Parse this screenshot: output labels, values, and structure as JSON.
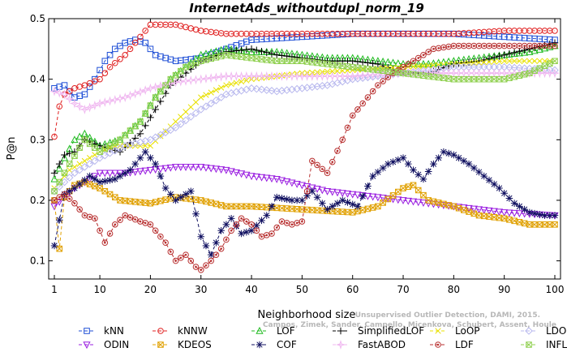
{
  "chart_data": {
    "type": "line",
    "title": "InternetAds_withoutdupl_norm_19",
    "xlabel": "Neighborhood size",
    "ylabel": "P@n",
    "xlim": [
      0,
      100
    ],
    "ylim": [
      0.07,
      0.5
    ],
    "xticks": [
      1,
      10,
      20,
      30,
      40,
      50,
      60,
      70,
      80,
      90,
      100
    ],
    "yticks": [
      0.1,
      0.2,
      0.3,
      0.4,
      0.5
    ],
    "grid": false,
    "legend_position": "bottom",
    "credit": [
      "Unsupervised Outlier Detection, DAMI, 2015.",
      "Campos, Zimek, Sander, Campello, Micenkova, Schubert, Assent, Houle"
    ],
    "series": [
      {
        "name": "kNN",
        "color": "#1f4fd6",
        "marker": "square",
        "points": [
          [
            1,
            0.385
          ],
          [
            3,
            0.39
          ],
          [
            5,
            0.37
          ],
          [
            7,
            0.375
          ],
          [
            9,
            0.4
          ],
          [
            11,
            0.43
          ],
          [
            13,
            0.45
          ],
          [
            15,
            0.46
          ],
          [
            17,
            0.465
          ],
          [
            19,
            0.46
          ],
          [
            21,
            0.44
          ],
          [
            23,
            0.435
          ],
          [
            25,
            0.43
          ],
          [
            30,
            0.435
          ],
          [
            35,
            0.45
          ],
          [
            40,
            0.465
          ],
          [
            50,
            0.47
          ],
          [
            60,
            0.475
          ],
          [
            70,
            0.475
          ],
          [
            80,
            0.475
          ],
          [
            90,
            0.47
          ],
          [
            100,
            0.465
          ]
        ]
      },
      {
        "name": "kNNW",
        "color": "#e02020",
        "marker": "circle",
        "points": [
          [
            1,
            0.305
          ],
          [
            2,
            0.355
          ],
          [
            3,
            0.375
          ],
          [
            5,
            0.385
          ],
          [
            7,
            0.39
          ],
          [
            10,
            0.4
          ],
          [
            12,
            0.42
          ],
          [
            15,
            0.44
          ],
          [
            18,
            0.47
          ],
          [
            20,
            0.49
          ],
          [
            25,
            0.49
          ],
          [
            30,
            0.48
          ],
          [
            35,
            0.475
          ],
          [
            40,
            0.475
          ],
          [
            50,
            0.475
          ],
          [
            60,
            0.475
          ],
          [
            70,
            0.475
          ],
          [
            80,
            0.475
          ],
          [
            90,
            0.48
          ],
          [
            100,
            0.48
          ]
        ]
      },
      {
        "name": "LOF",
        "color": "#22bb22",
        "marker": "triangle-up",
        "points": [
          [
            1,
            0.235
          ],
          [
            3,
            0.27
          ],
          [
            5,
            0.3
          ],
          [
            7,
            0.31
          ],
          [
            10,
            0.29
          ],
          [
            14,
            0.3
          ],
          [
            18,
            0.33
          ],
          [
            21,
            0.37
          ],
          [
            24,
            0.4
          ],
          [
            27,
            0.42
          ],
          [
            30,
            0.44
          ],
          [
            35,
            0.45
          ],
          [
            40,
            0.445
          ],
          [
            45,
            0.445
          ],
          [
            50,
            0.44
          ],
          [
            55,
            0.435
          ],
          [
            60,
            0.435
          ],
          [
            65,
            0.43
          ],
          [
            70,
            0.425
          ],
          [
            75,
            0.425
          ],
          [
            80,
            0.43
          ],
          [
            85,
            0.435
          ],
          [
            90,
            0.44
          ],
          [
            95,
            0.445
          ],
          [
            100,
            0.455
          ]
        ]
      },
      {
        "name": "SimplifiedLOF",
        "color": "#000000",
        "marker": "plus",
        "points": [
          [
            1,
            0.245
          ],
          [
            3,
            0.275
          ],
          [
            5,
            0.28
          ],
          [
            7,
            0.3
          ],
          [
            10,
            0.29
          ],
          [
            14,
            0.28
          ],
          [
            18,
            0.31
          ],
          [
            21,
            0.35
          ],
          [
            24,
            0.39
          ],
          [
            27,
            0.41
          ],
          [
            30,
            0.43
          ],
          [
            35,
            0.445
          ],
          [
            40,
            0.45
          ],
          [
            45,
            0.44
          ],
          [
            50,
            0.435
          ],
          [
            55,
            0.43
          ],
          [
            60,
            0.43
          ],
          [
            65,
            0.425
          ],
          [
            70,
            0.41
          ],
          [
            75,
            0.41
          ],
          [
            80,
            0.425
          ],
          [
            85,
            0.43
          ],
          [
            90,
            0.44
          ],
          [
            95,
            0.45
          ],
          [
            100,
            0.46
          ]
        ]
      },
      {
        "name": "LoOP",
        "color": "#e8e000",
        "marker": "x",
        "points": [
          [
            1,
            0.22
          ],
          [
            4,
            0.25
          ],
          [
            7,
            0.265
          ],
          [
            10,
            0.28
          ],
          [
            13,
            0.29
          ],
          [
            16,
            0.29
          ],
          [
            20,
            0.29
          ],
          [
            25,
            0.33
          ],
          [
            30,
            0.37
          ],
          [
            35,
            0.39
          ],
          [
            40,
            0.4
          ],
          [
            50,
            0.41
          ],
          [
            60,
            0.415
          ],
          [
            70,
            0.42
          ],
          [
            80,
            0.425
          ],
          [
            90,
            0.43
          ],
          [
            100,
            0.43
          ]
        ]
      },
      {
        "name": "LDOF",
        "color": "#b8b8ee",
        "marker": "diamond",
        "points": [
          [
            1,
            0.215
          ],
          [
            5,
            0.245
          ],
          [
            10,
            0.27
          ],
          [
            15,
            0.29
          ],
          [
            20,
            0.3
          ],
          [
            25,
            0.32
          ],
          [
            30,
            0.35
          ],
          [
            35,
            0.375
          ],
          [
            40,
            0.385
          ],
          [
            45,
            0.38
          ],
          [
            50,
            0.385
          ],
          [
            55,
            0.39
          ],
          [
            60,
            0.4
          ],
          [
            70,
            0.41
          ],
          [
            80,
            0.42
          ],
          [
            90,
            0.42
          ],
          [
            100,
            0.415
          ]
        ]
      },
      {
        "name": "ODIN",
        "color": "#9a1ee0",
        "marker": "triangle-down",
        "points": [
          [
            1,
            0.19
          ],
          [
            5,
            0.22
          ],
          [
            10,
            0.245
          ],
          [
            15,
            0.245
          ],
          [
            20,
            0.25
          ],
          [
            25,
            0.255
          ],
          [
            30,
            0.255
          ],
          [
            35,
            0.25
          ],
          [
            40,
            0.24
          ],
          [
            45,
            0.235
          ],
          [
            50,
            0.225
          ],
          [
            55,
            0.215
          ],
          [
            60,
            0.21
          ],
          [
            70,
            0.2
          ],
          [
            80,
            0.19
          ],
          [
            90,
            0.18
          ],
          [
            100,
            0.175
          ]
        ]
      },
      {
        "name": "KDEOS",
        "color": "#e0a000",
        "marker": "square-x",
        "points": [
          [
            1,
            0.2
          ],
          [
            2,
            0.12
          ],
          [
            3,
            0.205
          ],
          [
            5,
            0.225
          ],
          [
            7,
            0.23
          ],
          [
            10,
            0.22
          ],
          [
            14,
            0.2
          ],
          [
            20,
            0.195
          ],
          [
            25,
            0.205
          ],
          [
            30,
            0.2
          ],
          [
            35,
            0.19
          ],
          [
            40,
            0.19
          ],
          [
            50,
            0.185
          ],
          [
            60,
            0.18
          ],
          [
            65,
            0.19
          ],
          [
            70,
            0.22
          ],
          [
            72,
            0.225
          ],
          [
            75,
            0.2
          ],
          [
            80,
            0.19
          ],
          [
            85,
            0.175
          ],
          [
            90,
            0.17
          ],
          [
            95,
            0.16
          ],
          [
            100,
            0.16
          ]
        ]
      },
      {
        "name": "COF",
        "color": "#101060",
        "marker": "star",
        "points": [
          [
            1,
            0.125
          ],
          [
            3,
            0.21
          ],
          [
            5,
            0.22
          ],
          [
            8,
            0.24
          ],
          [
            10,
            0.23
          ],
          [
            13,
            0.235
          ],
          [
            16,
            0.25
          ],
          [
            19,
            0.28
          ],
          [
            21,
            0.26
          ],
          [
            23,
            0.22
          ],
          [
            25,
            0.2
          ],
          [
            28,
            0.215
          ],
          [
            30,
            0.14
          ],
          [
            32,
            0.11
          ],
          [
            34,
            0.15
          ],
          [
            36,
            0.17
          ],
          [
            38,
            0.145
          ],
          [
            40,
            0.15
          ],
          [
            43,
            0.175
          ],
          [
            45,
            0.205
          ],
          [
            48,
            0.2
          ],
          [
            50,
            0.2
          ],
          [
            52,
            0.215
          ],
          [
            55,
            0.185
          ],
          [
            58,
            0.2
          ],
          [
            61,
            0.19
          ],
          [
            64,
            0.24
          ],
          [
            67,
            0.26
          ],
          [
            70,
            0.27
          ],
          [
            72,
            0.25
          ],
          [
            74,
            0.235
          ],
          [
            76,
            0.26
          ],
          [
            78,
            0.28
          ],
          [
            80,
            0.275
          ],
          [
            83,
            0.26
          ],
          [
            86,
            0.24
          ],
          [
            89,
            0.22
          ],
          [
            92,
            0.195
          ],
          [
            95,
            0.18
          ],
          [
            98,
            0.175
          ],
          [
            100,
            0.175
          ]
        ]
      },
      {
        "name": "FastABOD",
        "color": "#f0b8f0",
        "marker": "star4",
        "points": [
          [
            1,
            0.38
          ],
          [
            3,
            0.375
          ],
          [
            5,
            0.36
          ],
          [
            7,
            0.35
          ],
          [
            10,
            0.36
          ],
          [
            15,
            0.37
          ],
          [
            20,
            0.385
          ],
          [
            25,
            0.395
          ],
          [
            30,
            0.4
          ],
          [
            35,
            0.405
          ],
          [
            40,
            0.405
          ],
          [
            50,
            0.405
          ],
          [
            60,
            0.405
          ],
          [
            70,
            0.41
          ],
          [
            80,
            0.41
          ],
          [
            90,
            0.41
          ],
          [
            100,
            0.41
          ]
        ]
      },
      {
        "name": "LDF",
        "color": "#b83030",
        "marker": "circle-dot",
        "points": [
          [
            1,
            0.2
          ],
          [
            3,
            0.21
          ],
          [
            5,
            0.195
          ],
          [
            7,
            0.175
          ],
          [
            9,
            0.17
          ],
          [
            11,
            0.13
          ],
          [
            13,
            0.16
          ],
          [
            15,
            0.175
          ],
          [
            18,
            0.165
          ],
          [
            20,
            0.16
          ],
          [
            23,
            0.13
          ],
          [
            25,
            0.1
          ],
          [
            27,
            0.11
          ],
          [
            29,
            0.09
          ],
          [
            30,
            0.085
          ],
          [
            32,
            0.1
          ],
          [
            34,
            0.12
          ],
          [
            36,
            0.15
          ],
          [
            38,
            0.17
          ],
          [
            40,
            0.16
          ],
          [
            42,
            0.14
          ],
          [
            44,
            0.145
          ],
          [
            46,
            0.165
          ],
          [
            48,
            0.16
          ],
          [
            50,
            0.165
          ],
          [
            52,
            0.265
          ],
          [
            55,
            0.245
          ],
          [
            58,
            0.3
          ],
          [
            60,
            0.34
          ],
          [
            62,
            0.36
          ],
          [
            65,
            0.39
          ],
          [
            68,
            0.41
          ],
          [
            72,
            0.43
          ],
          [
            76,
            0.45
          ],
          [
            80,
            0.455
          ],
          [
            85,
            0.455
          ],
          [
            90,
            0.455
          ],
          [
            95,
            0.455
          ],
          [
            100,
            0.455
          ]
        ]
      },
      {
        "name": "INFLO",
        "color": "#90d050",
        "marker": "square-x",
        "points": [
          [
            1,
            0.215
          ],
          [
            4,
            0.26
          ],
          [
            7,
            0.3
          ],
          [
            10,
            0.28
          ],
          [
            14,
            0.3
          ],
          [
            18,
            0.33
          ],
          [
            21,
            0.37
          ],
          [
            24,
            0.4
          ],
          [
            27,
            0.42
          ],
          [
            30,
            0.43
          ],
          [
            35,
            0.44
          ],
          [
            40,
            0.435
          ],
          [
            45,
            0.43
          ],
          [
            50,
            0.43
          ],
          [
            55,
            0.425
          ],
          [
            60,
            0.42
          ],
          [
            65,
            0.415
          ],
          [
            70,
            0.41
          ],
          [
            75,
            0.405
          ],
          [
            80,
            0.4
          ],
          [
            85,
            0.4
          ],
          [
            90,
            0.4
          ],
          [
            95,
            0.41
          ],
          [
            100,
            0.43
          ]
        ]
      }
    ]
  }
}
